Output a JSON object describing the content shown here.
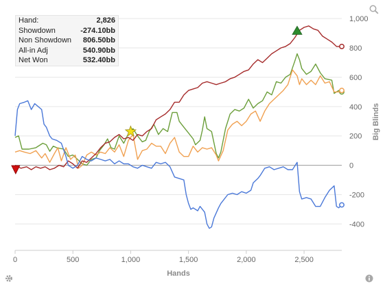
{
  "stats": [
    {
      "label": "Hand:",
      "value": "2,826"
    },
    {
      "label": "Showdown",
      "value": "-274.10bb"
    },
    {
      "label": "Non Showdown",
      "value": "806.50bb"
    },
    {
      "label": "All-in Adj",
      "value": "540.90bb"
    },
    {
      "label": "Net Won",
      "value": "532.40bb"
    }
  ],
  "icons": {
    "zoom": "magnifier-icon",
    "settings": "gear-icon",
    "info": "info-icon"
  },
  "chart_data": {
    "type": "line",
    "xlabel": "Hands",
    "ylabel": "Big Blinds",
    "xlim": [
      0,
      2826
    ],
    "ylim": [
      -580,
      1080
    ],
    "x_ticks": [
      0,
      500,
      1000,
      1500,
      2000,
      2500
    ],
    "x_tick_labels": [
      "0",
      "500",
      "1,000",
      "1,500",
      "2,000",
      "2,500"
    ],
    "y_ticks": [
      -400,
      -200,
      0,
      200,
      400,
      600,
      800,
      1000
    ],
    "y_tick_labels": [
      "-400",
      "-200",
      "0",
      "200",
      "400",
      "600",
      "800",
      "1,000"
    ],
    "grid": "horizontal",
    "y_axis_position": "right",
    "series": [
      {
        "key": "net_won",
        "color": "#6b9e3a",
        "points": [
          [
            0,
            190
          ],
          [
            30,
            200
          ],
          [
            60,
            110
          ],
          [
            120,
            110
          ],
          [
            180,
            120
          ],
          [
            240,
            150
          ],
          [
            270,
            140
          ],
          [
            300,
            95
          ],
          [
            330,
            130
          ],
          [
            360,
            120
          ],
          [
            420,
            110
          ],
          [
            460,
            60
          ],
          [
            500,
            70
          ],
          [
            540,
            40
          ],
          [
            580,
            10
          ],
          [
            620,
            0
          ],
          [
            660,
            40
          ],
          [
            700,
            50
          ],
          [
            730,
            100
          ],
          [
            770,
            140
          ],
          [
            800,
            180
          ],
          [
            830,
            120
          ],
          [
            860,
            110
          ],
          [
            900,
            200
          ],
          [
            940,
            150
          ],
          [
            980,
            215
          ],
          [
            1020,
            250
          ],
          [
            1060,
            200
          ],
          [
            1100,
            160
          ],
          [
            1130,
            170
          ],
          [
            1160,
            230
          ],
          [
            1200,
            280
          ],
          [
            1240,
            210
          ],
          [
            1280,
            250
          ],
          [
            1320,
            230
          ],
          [
            1360,
            360
          ],
          [
            1400,
            360
          ],
          [
            1420,
            300
          ],
          [
            1460,
            260
          ],
          [
            1500,
            220
          ],
          [
            1540,
            180
          ],
          [
            1560,
            140
          ],
          [
            1600,
            170
          ],
          [
            1620,
            240
          ],
          [
            1640,
            330
          ],
          [
            1660,
            250
          ],
          [
            1700,
            230
          ],
          [
            1740,
            80
          ],
          [
            1760,
            50
          ],
          [
            1780,
            90
          ],
          [
            1820,
            250
          ],
          [
            1860,
            350
          ],
          [
            1900,
            380
          ],
          [
            1940,
            370
          ],
          [
            1980,
            390
          ],
          [
            2020,
            450
          ],
          [
            2060,
            390
          ],
          [
            2100,
            420
          ],
          [
            2140,
            440
          ],
          [
            2180,
            500
          ],
          [
            2220,
            480
          ],
          [
            2260,
            570
          ],
          [
            2300,
            560
          ],
          [
            2340,
            600
          ],
          [
            2380,
            620
          ],
          [
            2420,
            710
          ],
          [
            2440,
            760
          ],
          [
            2460,
            720
          ],
          [
            2480,
            660
          ],
          [
            2520,
            620
          ],
          [
            2560,
            640
          ],
          [
            2600,
            690
          ],
          [
            2640,
            630
          ],
          [
            2680,
            590
          ],
          [
            2740,
            580
          ],
          [
            2760,
            490
          ],
          [
            2800,
            510
          ],
          [
            2826,
            500
          ]
        ]
      },
      {
        "key": "all_in_adj",
        "color": "#f0a050",
        "points": [
          [
            0,
            90
          ],
          [
            40,
            100
          ],
          [
            80,
            90
          ],
          [
            130,
            80
          ],
          [
            180,
            100
          ],
          [
            230,
            50
          ],
          [
            260,
            80
          ],
          [
            300,
            20
          ],
          [
            340,
            80
          ],
          [
            370,
            120
          ],
          [
            400,
            30
          ],
          [
            440,
            120
          ],
          [
            480,
            40
          ],
          [
            520,
            70
          ],
          [
            550,
            -20
          ],
          [
            580,
            0
          ],
          [
            620,
            70
          ],
          [
            660,
            90
          ],
          [
            700,
            70
          ],
          [
            740,
            90
          ],
          [
            780,
            80
          ],
          [
            820,
            120
          ],
          [
            860,
            90
          ],
          [
            900,
            140
          ],
          [
            940,
            60
          ],
          [
            980,
            170
          ],
          [
            1020,
            210
          ],
          [
            1060,
            40
          ],
          [
            1100,
            100
          ],
          [
            1140,
            110
          ],
          [
            1180,
            150
          ],
          [
            1220,
            130
          ],
          [
            1260,
            130
          ],
          [
            1300,
            80
          ],
          [
            1340,
            150
          ],
          [
            1380,
            190
          ],
          [
            1420,
            90
          ],
          [
            1460,
            60
          ],
          [
            1500,
            60
          ],
          [
            1540,
            130
          ],
          [
            1580,
            90
          ],
          [
            1620,
            120
          ],
          [
            1660,
            110
          ],
          [
            1700,
            120
          ],
          [
            1740,
            70
          ],
          [
            1760,
            30
          ],
          [
            1800,
            100
          ],
          [
            1840,
            240
          ],
          [
            1880,
            280
          ],
          [
            1920,
            300
          ],
          [
            1960,
            270
          ],
          [
            2000,
            300
          ],
          [
            2040,
            350
          ],
          [
            2080,
            370
          ],
          [
            2120,
            300
          ],
          [
            2160,
            370
          ],
          [
            2200,
            420
          ],
          [
            2240,
            450
          ],
          [
            2280,
            480
          ],
          [
            2320,
            510
          ],
          [
            2360,
            550
          ],
          [
            2400,
            650
          ],
          [
            2440,
            610
          ],
          [
            2460,
            550
          ],
          [
            2480,
            590
          ],
          [
            2520,
            550
          ],
          [
            2560,
            580
          ],
          [
            2600,
            550
          ],
          [
            2640,
            610
          ],
          [
            2680,
            560
          ],
          [
            2720,
            570
          ],
          [
            2760,
            500
          ],
          [
            2800,
            500
          ],
          [
            2826,
            510
          ]
        ]
      },
      {
        "key": "non_showdown",
        "color": "#a52a2a",
        "points": [
          [
            0,
            0
          ],
          [
            50,
            -20
          ],
          [
            100,
            -10
          ],
          [
            140,
            -30
          ],
          [
            180,
            -10
          ],
          [
            220,
            -20
          ],
          [
            260,
            -10
          ],
          [
            300,
            -30
          ],
          [
            340,
            -20
          ],
          [
            380,
            0
          ],
          [
            420,
            -10
          ],
          [
            460,
            30
          ],
          [
            500,
            10
          ],
          [
            540,
            -20
          ],
          [
            580,
            30
          ],
          [
            620,
            20
          ],
          [
            660,
            50
          ],
          [
            700,
            80
          ],
          [
            740,
            120
          ],
          [
            780,
            150
          ],
          [
            820,
            160
          ],
          [
            860,
            190
          ],
          [
            900,
            210
          ],
          [
            940,
            180
          ],
          [
            980,
            190
          ],
          [
            1020,
            170
          ],
          [
            1060,
            210
          ],
          [
            1100,
            200
          ],
          [
            1140,
            230
          ],
          [
            1180,
            250
          ],
          [
            1220,
            310
          ],
          [
            1260,
            330
          ],
          [
            1300,
            350
          ],
          [
            1340,
            380
          ],
          [
            1380,
            430
          ],
          [
            1420,
            430
          ],
          [
            1460,
            480
          ],
          [
            1500,
            510
          ],
          [
            1540,
            520
          ],
          [
            1580,
            530
          ],
          [
            1620,
            560
          ],
          [
            1660,
            570
          ],
          [
            1700,
            560
          ],
          [
            1740,
            550
          ],
          [
            1780,
            560
          ],
          [
            1820,
            570
          ],
          [
            1860,
            590
          ],
          [
            1900,
            600
          ],
          [
            1940,
            620
          ],
          [
            1980,
            640
          ],
          [
            2020,
            650
          ],
          [
            2060,
            690
          ],
          [
            2100,
            720
          ],
          [
            2140,
            700
          ],
          [
            2180,
            730
          ],
          [
            2220,
            760
          ],
          [
            2260,
            780
          ],
          [
            2300,
            800
          ],
          [
            2340,
            810
          ],
          [
            2380,
            830
          ],
          [
            2420,
            870
          ],
          [
            2460,
            920
          ],
          [
            2500,
            940
          ],
          [
            2540,
            950
          ],
          [
            2580,
            930
          ],
          [
            2620,
            920
          ],
          [
            2660,
            880
          ],
          [
            2700,
            860
          ],
          [
            2740,
            840
          ],
          [
            2780,
            810
          ],
          [
            2826,
            810
          ]
        ]
      },
      {
        "key": "showdown",
        "color": "#4a78d8",
        "points": [
          [
            0,
            200
          ],
          [
            20,
            380
          ],
          [
            40,
            420
          ],
          [
            80,
            430
          ],
          [
            110,
            440
          ],
          [
            140,
            380
          ],
          [
            170,
            420
          ],
          [
            200,
            400
          ],
          [
            230,
            380
          ],
          [
            250,
            280
          ],
          [
            270,
            260
          ],
          [
            300,
            200
          ],
          [
            320,
            180
          ],
          [
            360,
            170
          ],
          [
            400,
            150
          ],
          [
            440,
            60
          ],
          [
            460,
            0
          ],
          [
            500,
            -20
          ],
          [
            540,
            0
          ],
          [
            580,
            60
          ],
          [
            620,
            40
          ],
          [
            660,
            30
          ],
          [
            700,
            50
          ],
          [
            740,
            40
          ],
          [
            780,
            30
          ],
          [
            820,
            40
          ],
          [
            860,
            10
          ],
          [
            900,
            30
          ],
          [
            940,
            10
          ],
          [
            980,
            10
          ],
          [
            1020,
            -10
          ],
          [
            1060,
            -20
          ],
          [
            1100,
            0
          ],
          [
            1140,
            -10
          ],
          [
            1180,
            -20
          ],
          [
            1220,
            20
          ],
          [
            1260,
            10
          ],
          [
            1300,
            20
          ],
          [
            1340,
            -10
          ],
          [
            1380,
            -80
          ],
          [
            1420,
            -90
          ],
          [
            1460,
            -100
          ],
          [
            1480,
            -200
          ],
          [
            1500,
            -260
          ],
          [
            1520,
            -300
          ],
          [
            1540,
            -290
          ],
          [
            1580,
            -310
          ],
          [
            1600,
            -280
          ],
          [
            1640,
            -320
          ],
          [
            1660,
            -400
          ],
          [
            1680,
            -430
          ],
          [
            1700,
            -420
          ],
          [
            1720,
            -360
          ],
          [
            1760,
            -290
          ],
          [
            1780,
            -260
          ],
          [
            1800,
            -240
          ],
          [
            1840,
            -200
          ],
          [
            1880,
            -190
          ],
          [
            1920,
            -200
          ],
          [
            1960,
            -180
          ],
          [
            2000,
            -190
          ],
          [
            2040,
            -170
          ],
          [
            2060,
            -120
          ],
          [
            2100,
            -90
          ],
          [
            2120,
            -70
          ],
          [
            2160,
            -20
          ],
          [
            2200,
            -10
          ],
          [
            2240,
            -30
          ],
          [
            2280,
            -20
          ],
          [
            2320,
            -10
          ],
          [
            2360,
            -30
          ],
          [
            2400,
            -30
          ],
          [
            2440,
            20
          ],
          [
            2460,
            -180
          ],
          [
            2480,
            -230
          ],
          [
            2520,
            -220
          ],
          [
            2560,
            -230
          ],
          [
            2600,
            -280
          ],
          [
            2640,
            -280
          ],
          [
            2680,
            -220
          ],
          [
            2720,
            -170
          ],
          [
            2760,
            -140
          ],
          [
            2780,
            -280
          ],
          [
            2800,
            -290
          ],
          [
            2826,
            -270
          ]
        ]
      }
    ],
    "markers": [
      {
        "type": "triangle-down",
        "color": "#d01010",
        "x": 5,
        "y": -30
      },
      {
        "type": "star",
        "color": "#f2e01a",
        "x": 1000,
        "y": 230
      },
      {
        "type": "triangle-up",
        "color": "#2e8b2e",
        "x": 2440,
        "y": 920
      }
    ]
  }
}
